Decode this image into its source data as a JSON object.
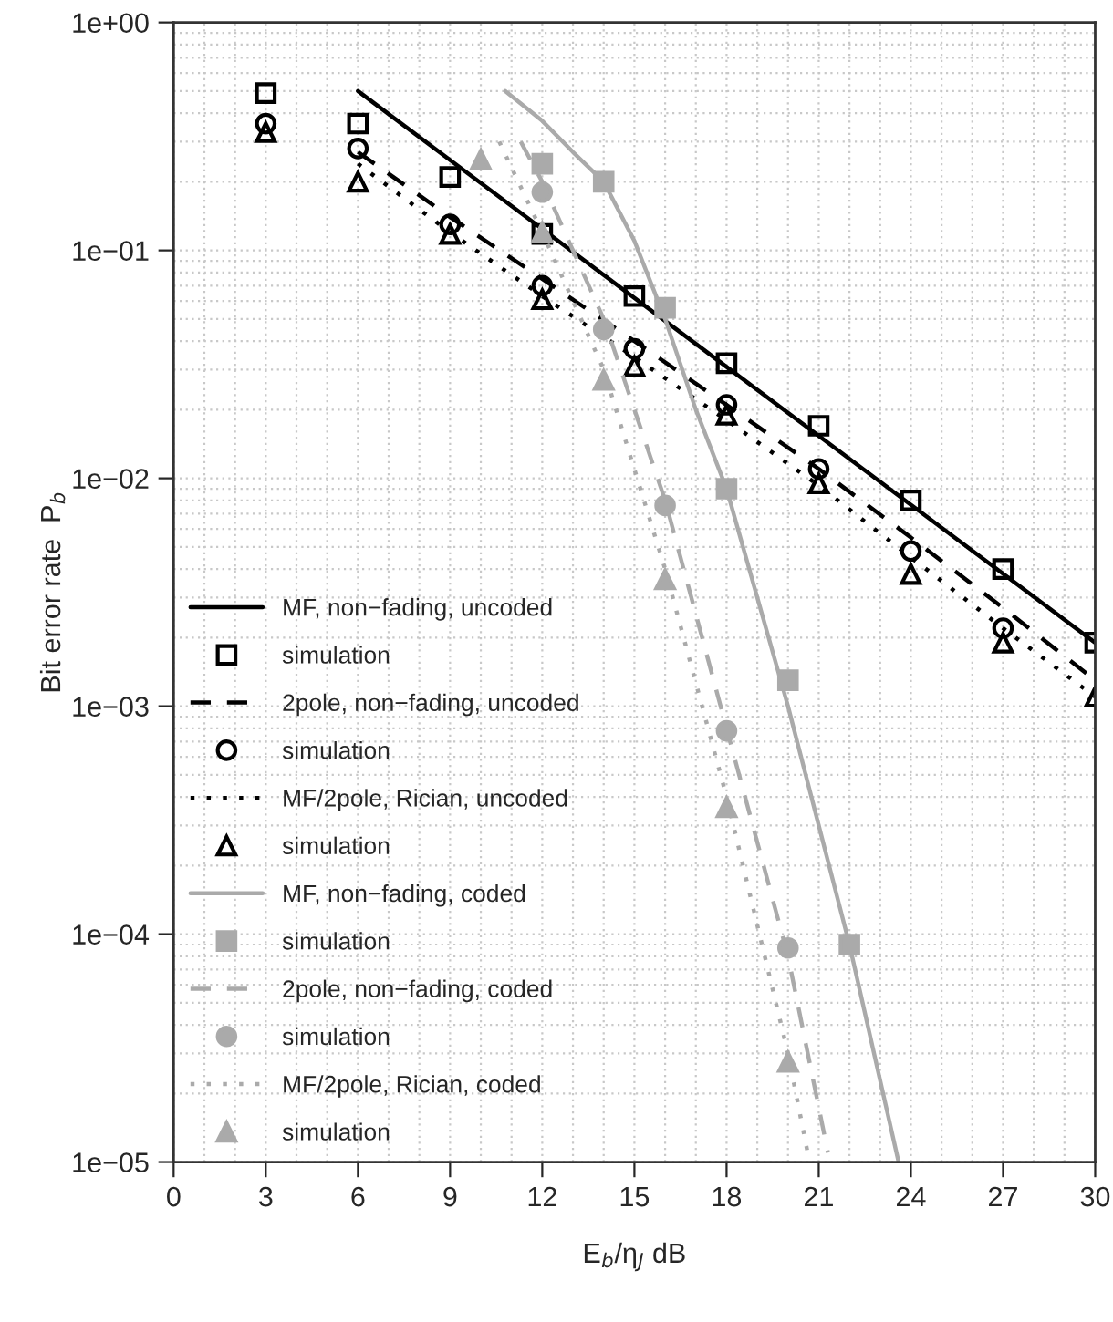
{
  "chart_data": {
    "type": "line",
    "xlabel": "E$_{b}$/η$_{J}$ dB",
    "ylabel": "Bit error rate  P$_{b}$",
    "log": "y",
    "grid": true,
    "legend": "bottom left",
    "xlim": [
      0,
      30
    ],
    "xticks": [
      0,
      3,
      6,
      9,
      12,
      15,
      18,
      21,
      24,
      27,
      30
    ],
    "ylim": [
      1e-05,
      1
    ],
    "yticks": [
      {
        "value": 1e-05,
        "label": "1e−05"
      },
      {
        "value": 0.0001,
        "label": "1e−04"
      },
      {
        "value": 0.001,
        "label": "1e−03"
      },
      {
        "value": 0.01,
        "label": "1e−02"
      },
      {
        "value": 0.1,
        "label": "1e−01"
      },
      {
        "value": 1,
        "label": "1e+00"
      }
    ],
    "series": [
      {
        "name": "MF, non−fading, uncoded",
        "line_style": "solid",
        "color": "#000000",
        "x": [
          6,
          30
        ],
        "values": [
          0.5,
          0.0019
        ]
      },
      {
        "name": "simulation",
        "type": "scatter",
        "marker": "square",
        "color": "#000000",
        "x": [
          3,
          6,
          9,
          12,
          15,
          18,
          21,
          24,
          27,
          30
        ],
        "values": [
          0.49,
          0.36,
          0.21,
          0.118,
          0.063,
          0.032,
          0.017,
          0.008,
          0.004,
          0.0019
        ]
      },
      {
        "name": "2pole, non−fading, uncoded",
        "line_style": "dashed",
        "color": "#000000",
        "x": [
          6,
          9,
          12,
          15,
          18,
          21,
          24,
          27,
          30
        ],
        "values": [
          0.27,
          0.14,
          0.075,
          0.04,
          0.021,
          0.011,
          0.0055,
          0.0027,
          0.0013
        ]
      },
      {
        "name": "simulation",
        "type": "scatter",
        "marker": "circle",
        "color": "#000000",
        "x": [
          3,
          6,
          9,
          12,
          15,
          18,
          21,
          24,
          27
        ],
        "values": [
          0.36,
          0.28,
          0.13,
          0.07,
          0.037,
          0.021,
          0.011,
          0.0048,
          0.0022
        ]
      },
      {
        "name": "MF/2pole, Rician, uncoded",
        "line_style": "dotted",
        "color": "#000000",
        "x": [
          6,
          9,
          12,
          15,
          18,
          21,
          24,
          27,
          30
        ],
        "values": [
          0.24,
          0.12,
          0.063,
          0.034,
          0.018,
          0.0093,
          0.0045,
          0.0022,
          0.0011
        ]
      },
      {
        "name": "simulation",
        "type": "scatter",
        "marker": "triangle",
        "color": "#000000",
        "x": [
          3,
          6,
          9,
          12,
          15,
          18,
          21,
          24,
          27,
          30
        ],
        "values": [
          0.33,
          0.2,
          0.118,
          0.061,
          0.031,
          0.019,
          0.0095,
          0.0038,
          0.0019,
          0.0011
        ]
      },
      {
        "name": "MF, non−fading, coded",
        "line_style": "solid",
        "color": "#aaaaaa",
        "x": [
          10.8,
          12,
          13,
          14,
          15,
          16,
          17,
          18,
          20,
          22,
          23.6
        ],
        "values": [
          0.5,
          0.37,
          0.27,
          0.2,
          0.11,
          0.05,
          0.02,
          0.009,
          0.001,
          9e-05,
          1e-05
        ]
      },
      {
        "name": "simulation",
        "type": "scatter",
        "marker": "square",
        "color": "#aaaaaa",
        "x": [
          12,
          14,
          16,
          18,
          20,
          22
        ],
        "values": [
          0.24,
          0.2,
          0.056,
          0.009,
          0.0013,
          9e-05
        ]
      },
      {
        "name": "2pole, non−fading, coded",
        "line_style": "dashed",
        "color": "#aaaaaa",
        "x": [
          11.3,
          12,
          14,
          16,
          18,
          20,
          21.3
        ],
        "values": [
          0.3,
          0.2,
          0.05,
          0.008,
          0.0008,
          8e-05,
          1.1e-05
        ]
      },
      {
        "name": "simulation",
        "type": "scatter",
        "marker": "circle",
        "color": "#aaaaaa",
        "x": [
          12,
          14,
          16,
          18,
          20
        ],
        "values": [
          0.18,
          0.045,
          0.0076,
          0.00078,
          8.7e-05
        ]
      },
      {
        "name": "MF/2pole, Rician, coded",
        "line_style": "dotted",
        "color": "#aaaaaa",
        "x": [
          10.6,
          12,
          14,
          16,
          18,
          20,
          20.7
        ],
        "values": [
          0.3,
          0.12,
          0.03,
          0.004,
          0.0004,
          3e-05,
          1e-05
        ]
      },
      {
        "name": "simulation",
        "type": "scatter",
        "marker": "triangle",
        "color": "#aaaaaa",
        "x": [
          10,
          12,
          14,
          16,
          18,
          20
        ],
        "values": [
          0.25,
          0.12,
          0.027,
          0.0036,
          0.00036,
          2.75e-05
        ]
      }
    ]
  }
}
